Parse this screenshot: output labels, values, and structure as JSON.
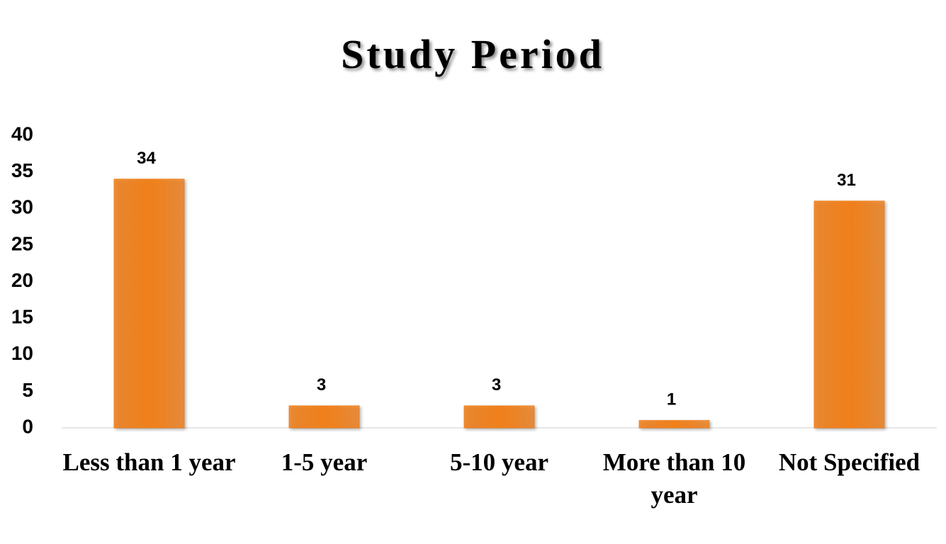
{
  "chart_data": {
    "type": "bar",
    "title": "Study Period",
    "categories": [
      "Less than 1 year",
      "1-5 year",
      "5-10 year",
      "More than 10 year",
      "Not Specified"
    ],
    "values": [
      34,
      3,
      3,
      1,
      31
    ],
    "color": "#f07f1a",
    "ylim": [
      0,
      40
    ],
    "yticks": [
      0,
      5,
      10,
      15,
      20,
      25,
      30,
      35,
      40
    ],
    "grid": false
  }
}
